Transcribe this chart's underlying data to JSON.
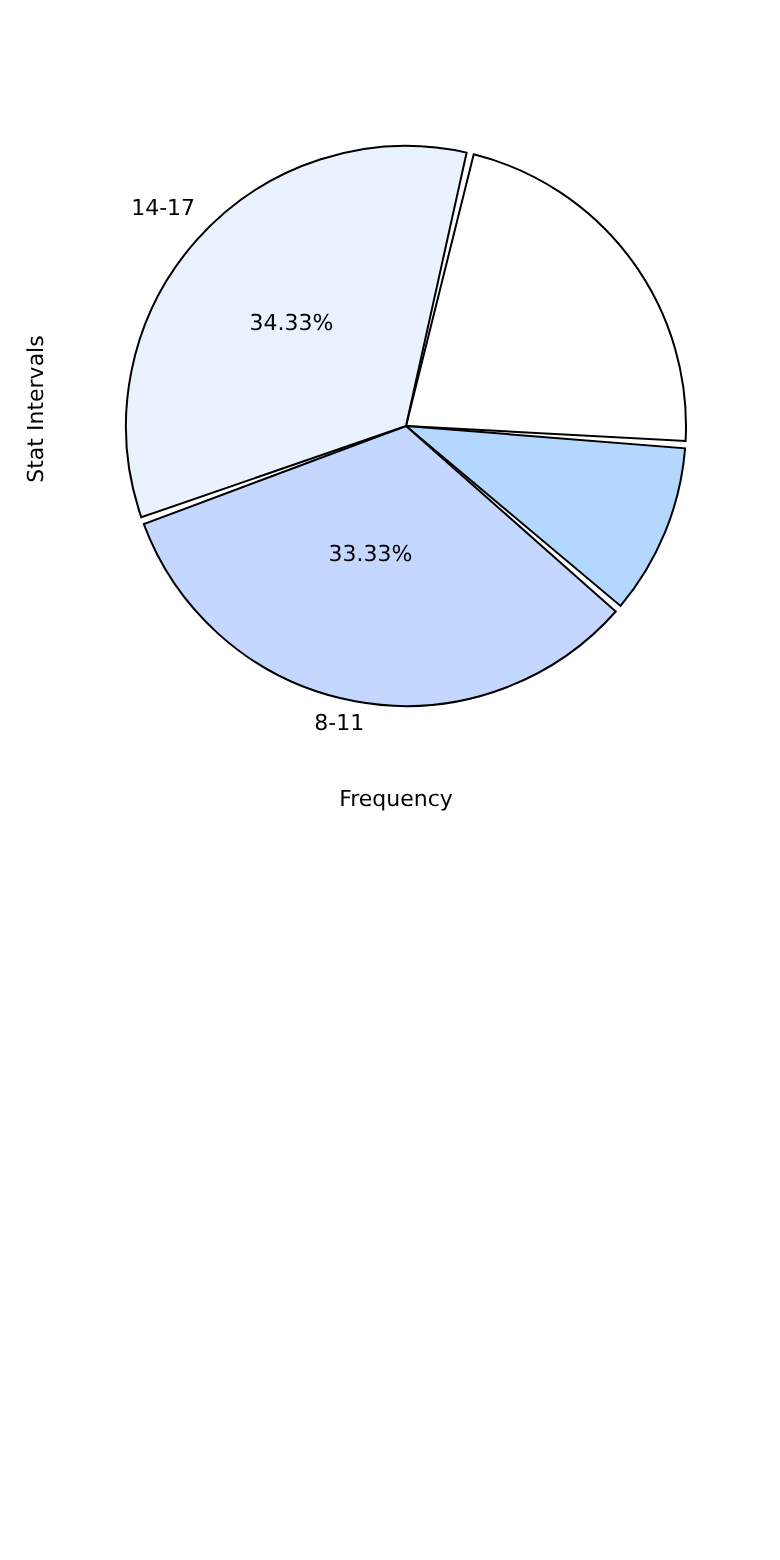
{
  "chart_data": {
    "type": "pie",
    "xlabel": "Frequency",
    "ylabel": "Stat Intervals",
    "categories": [
      null,
      null,
      "8-11",
      "14-17"
    ],
    "values": [
      22.34,
      10,
      33.33,
      34.33
    ],
    "value_labels": [
      null,
      null,
      "33.33%",
      "34.33%"
    ],
    "colors": [
      "#ffffff",
      "#b3d7ff",
      "#c4d8ff",
      "#eaf2ff"
    ]
  }
}
